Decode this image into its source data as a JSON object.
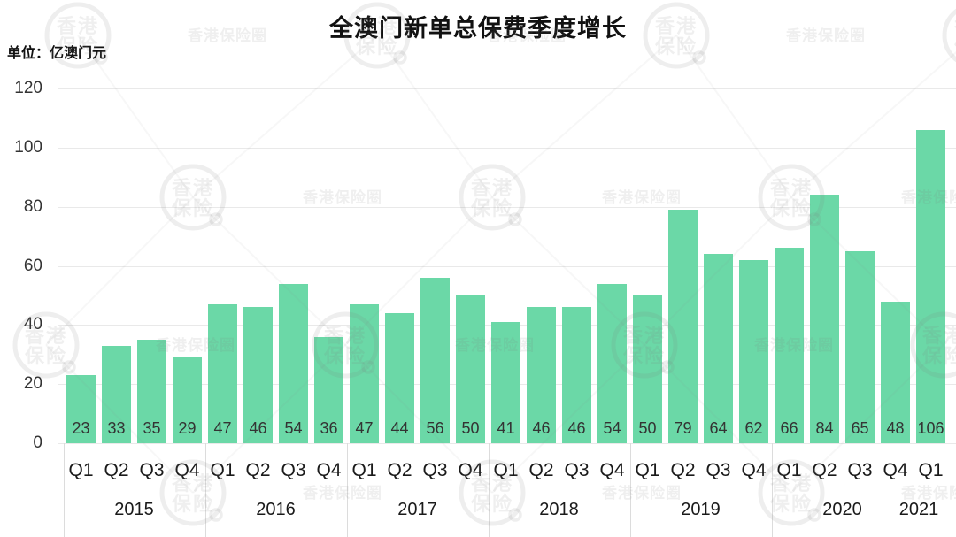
{
  "header": {
    "title": "全澳门新单总保费季度增长",
    "unit_label": "单位：亿澳门元"
  },
  "watermark": {
    "stamp_line1": "香港",
    "stamp_line2": "保险",
    "text": "香港保险圈"
  },
  "chart_data": {
    "type": "bar",
    "title": "全澳门新单总保费季度增长",
    "unit": "亿澳门元",
    "ylabel": "亿澳门元",
    "xlabel": "",
    "ylim": [
      0,
      120
    ],
    "yticks": [
      0,
      20,
      40,
      60,
      80,
      100,
      120
    ],
    "grid": true,
    "legend": "none",
    "bar_color": "#6bd8a7",
    "quarter_labels": [
      "Q1",
      "Q2",
      "Q3",
      "Q4"
    ],
    "year_groups": [
      {
        "year": "2015",
        "quarters": [
          "Q1",
          "Q2",
          "Q3",
          "Q4"
        ],
        "values": [
          23,
          33,
          35,
          29
        ]
      },
      {
        "year": "2016",
        "quarters": [
          "Q1",
          "Q2",
          "Q3",
          "Q4"
        ],
        "values": [
          47,
          46,
          54,
          36
        ]
      },
      {
        "year": "2017",
        "quarters": [
          "Q1",
          "Q2",
          "Q3",
          "Q4"
        ],
        "values": [
          47,
          44,
          56,
          50
        ]
      },
      {
        "year": "2018",
        "quarters": [
          "Q1",
          "Q2",
          "Q3",
          "Q4"
        ],
        "values": [
          41,
          46,
          46,
          54
        ]
      },
      {
        "year": "2019",
        "quarters": [
          "Q1",
          "Q2",
          "Q3",
          "Q4"
        ],
        "values": [
          50,
          79,
          64,
          62
        ]
      },
      {
        "year": "2020",
        "quarters": [
          "Q1",
          "Q2",
          "Q3",
          "Q4"
        ],
        "values": [
          66,
          84,
          65,
          48
        ]
      },
      {
        "year": "2021",
        "quarters": [
          "Q1"
        ],
        "values": [
          106
        ]
      }
    ]
  }
}
